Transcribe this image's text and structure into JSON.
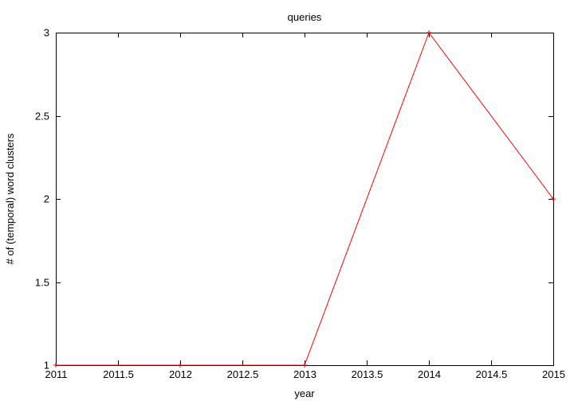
{
  "chart_data": {
    "type": "line",
    "title": "queries",
    "xlabel": "year",
    "ylabel": "# of (temporal) word clusters",
    "xlim": [
      2011,
      2015
    ],
    "ylim": [
      1,
      3
    ],
    "xticks": [
      "2011",
      "2011.5",
      "2012",
      "2012.5",
      "2013",
      "2013.5",
      "2014",
      "2014.5",
      "2015"
    ],
    "yticks": [
      "1",
      "1.5",
      "2",
      "2.5",
      "3"
    ],
    "grid": false,
    "series": [
      {
        "color": "#ff0000",
        "x": [
          2011,
          2012,
          2013,
          2014,
          2015
        ],
        "y": [
          1,
          1,
          1,
          3,
          2
        ]
      }
    ]
  }
}
